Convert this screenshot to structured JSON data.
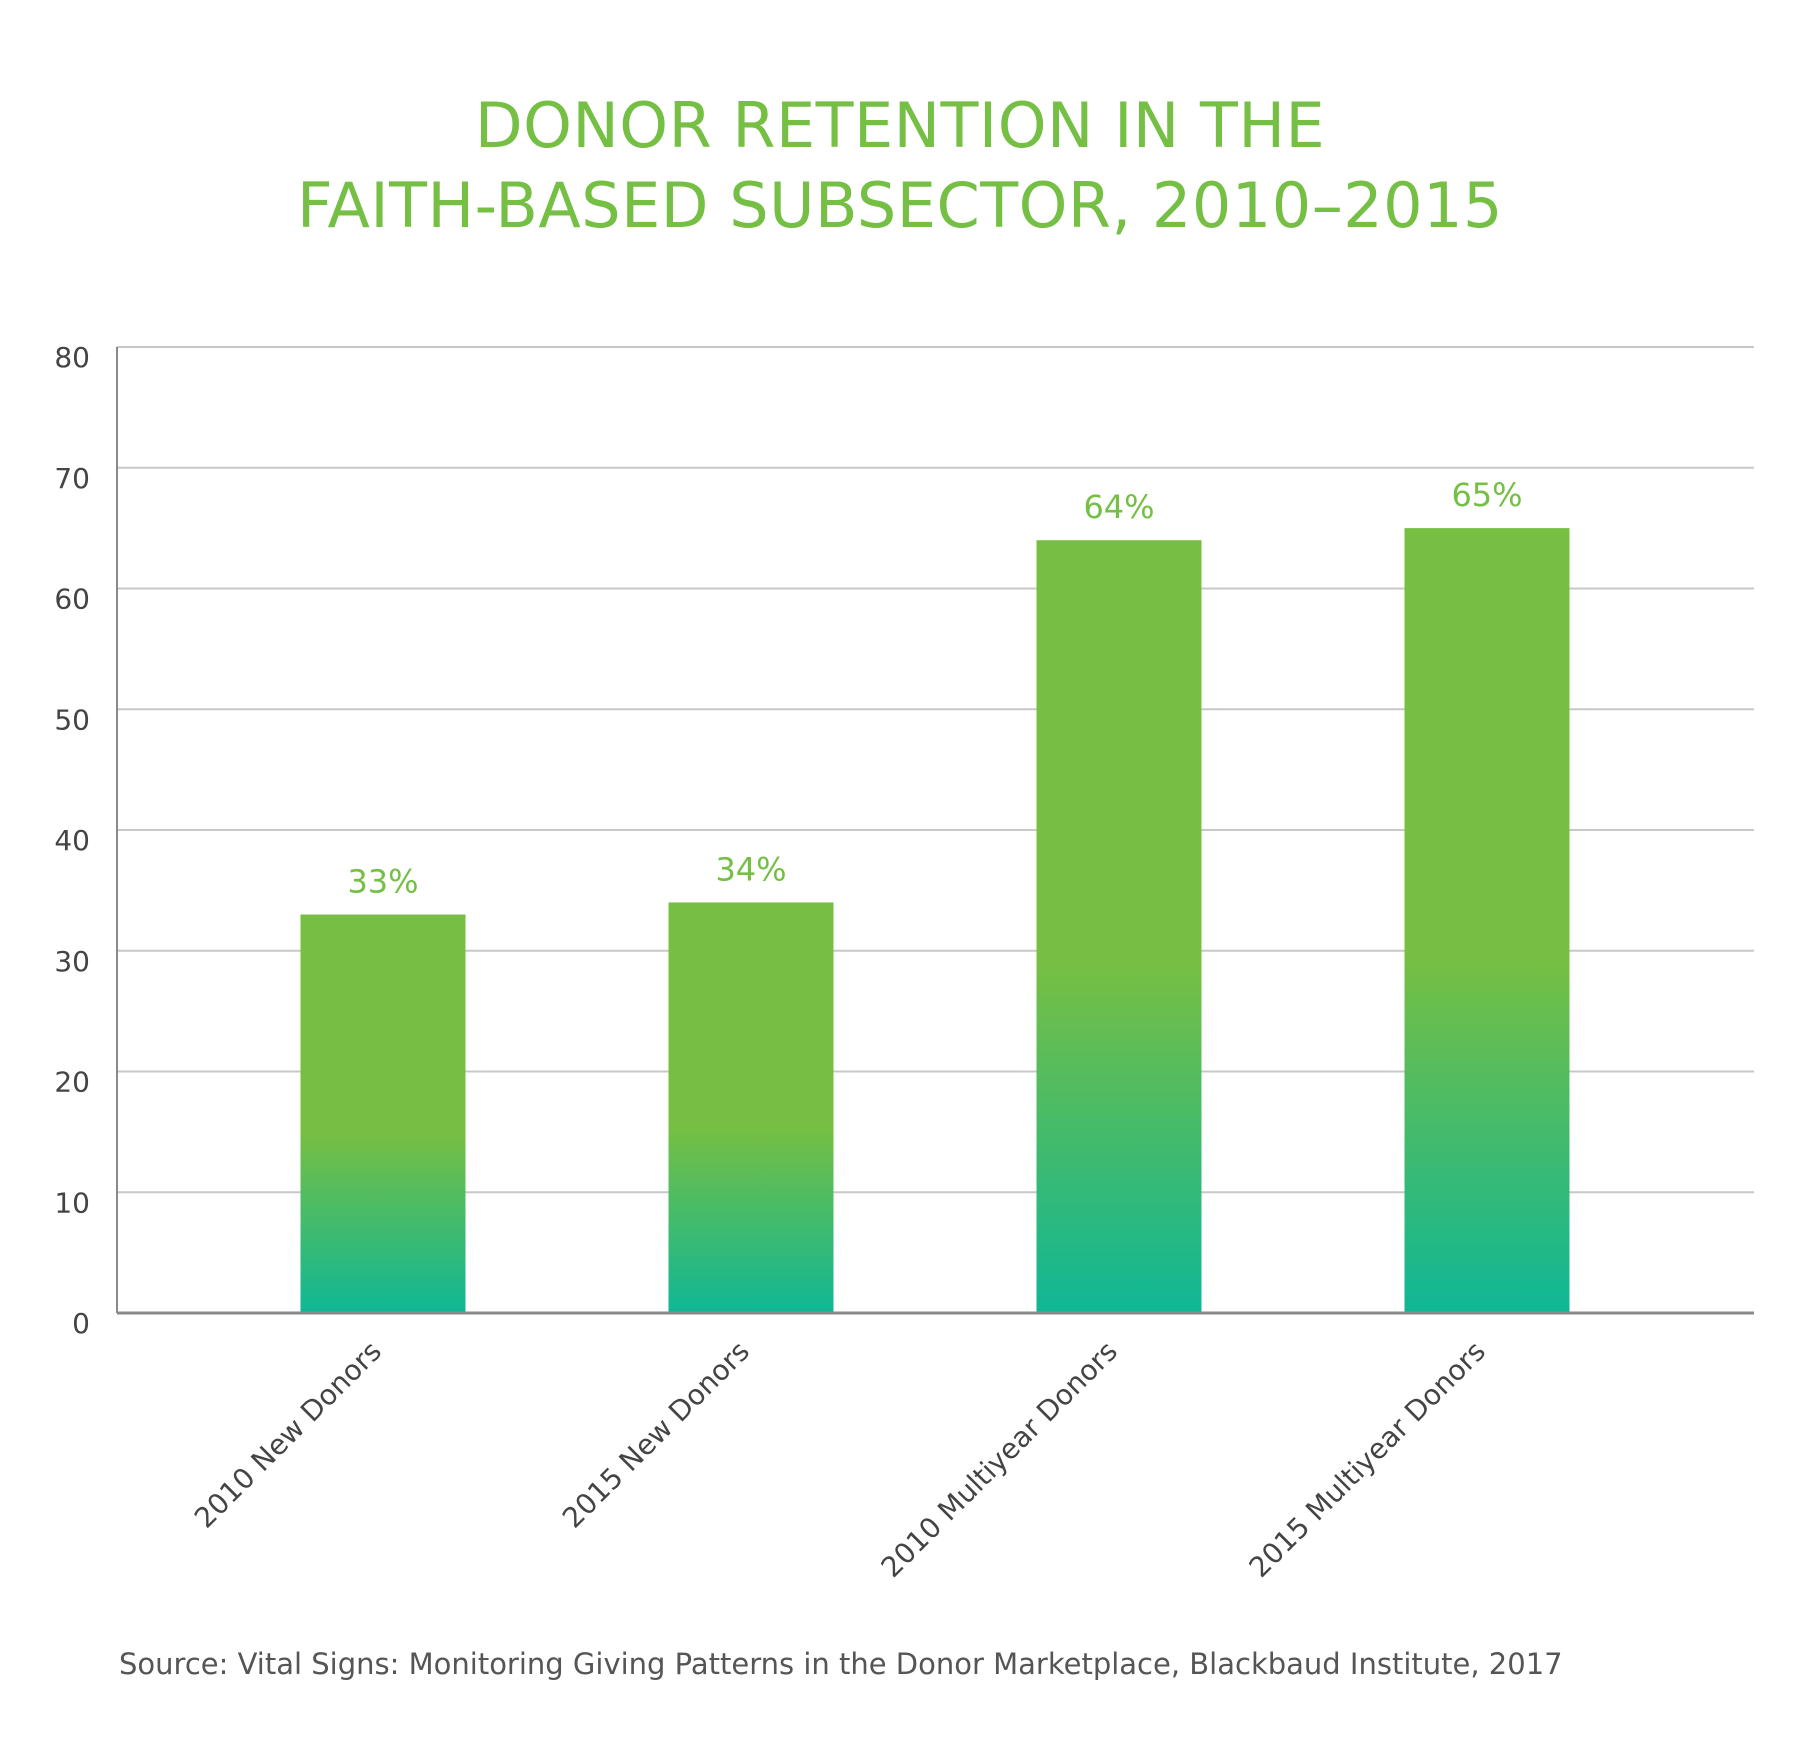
{
  "chart_data": {
    "type": "bar",
    "title_lines": [
      "DONOR RETENTION IN THE",
      "FAITH-BASED SUBSECTOR, 2010–2015"
    ],
    "categories": [
      "2010 New Donors",
      "2015 New Donors",
      "2010 Multiyear Donors",
      "2015 Multiyear Donors"
    ],
    "values": [
      33,
      34,
      64,
      65
    ],
    "data_labels": [
      "33%",
      "34%",
      "64%",
      "65%"
    ],
    "yticks": [
      0,
      10,
      20,
      30,
      40,
      50,
      60,
      70,
      80
    ],
    "ylim": [
      0,
      80
    ],
    "grid": true,
    "legend": "none",
    "xlabel": "",
    "ylabel": ""
  },
  "source": "Source: Vital Signs: Monitoring Giving Patterns in the Donor Marketplace, Blackbaud Institute, 2017",
  "colors": {
    "title": "#74bf44",
    "bar_top": "#76bf43",
    "bar_bottom": "#0fb796",
    "data_label": "#74bf44",
    "gridline": "#c8c8c8",
    "axis": "#8a8a8a",
    "tick_label": "#444444"
  }
}
